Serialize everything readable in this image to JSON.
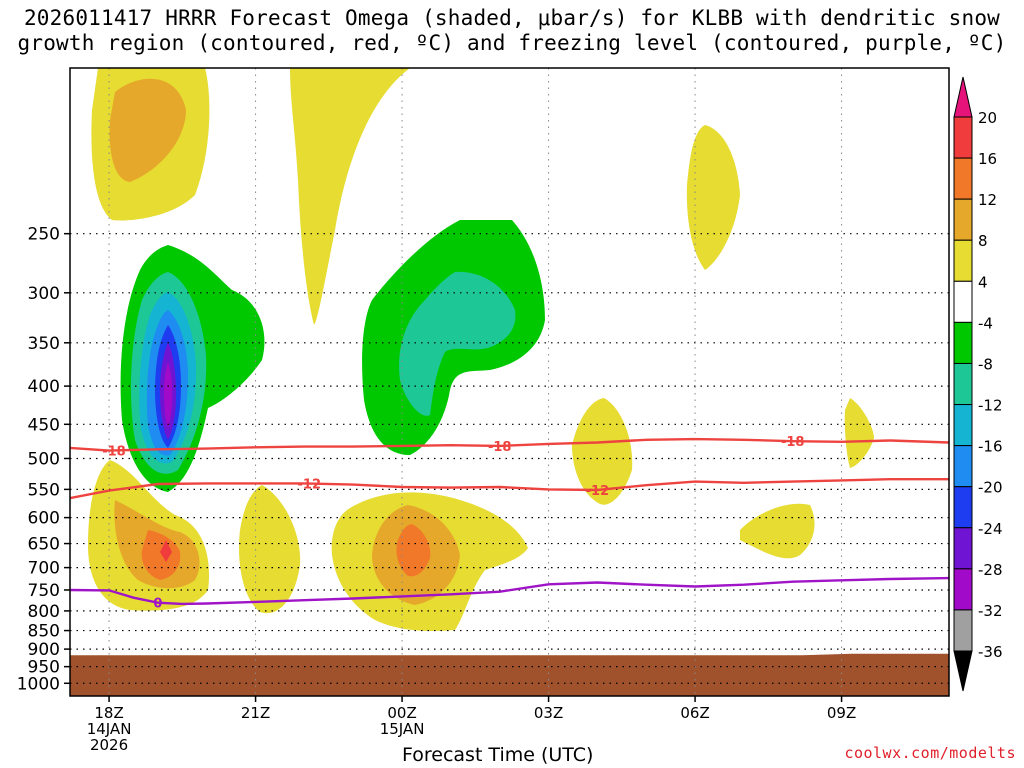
{
  "title_line1": "2026011417 HRRR Forecast Omega (shaded, μbar/s) for KLBB with dendritic snow",
  "title_line2": "growth region (contoured, red, ºC) and freezing level (contoured, purple, ºC)",
  "credit": "coolwx.com/modelts",
  "chart_data": {
    "type": "time-height contour",
    "xlabel": "Forecast Time (UTC)",
    "ylabel": "",
    "x_range_hours": [
      -0.8,
      17.2
    ],
    "y_range_mb": [
      150,
      1040
    ],
    "y_ticks": [
      250,
      300,
      350,
      400,
      450,
      500,
      550,
      600,
      650,
      700,
      750,
      800,
      850,
      900,
      950,
      1000
    ],
    "x_ticks": [
      {
        "hour": 0,
        "lines": [
          "18Z",
          "14JAN",
          "2026"
        ]
      },
      {
        "hour": 3,
        "lines": [
          "21Z"
        ]
      },
      {
        "hour": 6,
        "lines": [
          "00Z",
          "15JAN"
        ]
      },
      {
        "hour": 9,
        "lines": [
          "03Z"
        ]
      },
      {
        "hour": 12,
        "lines": [
          "06Z"
        ]
      },
      {
        "hour": 15,
        "lines": [
          "09Z"
        ]
      }
    ],
    "colorbar": {
      "labels": [
        "20",
        "16",
        "12",
        "8",
        "4",
        "-4",
        "-8",
        "-12",
        "-16",
        "-20",
        "-24",
        "-28",
        "-32",
        "-36"
      ],
      "colors": [
        "#f03c3c",
        "#f07828",
        "#e6a82a",
        "#e6dc32",
        "#ffffff",
        "#00c800",
        "#1ec896",
        "#14b4d2",
        "#1e8cf0",
        "#1e3cf0",
        "#6e14d2",
        "#a00ac8",
        "#a0a0a0"
      ],
      "top_arrow_color": "#e6147a",
      "bottom_arrow_color": "#000000"
    },
    "ground_color": "#a0522d",
    "ground_top_mb": [
      917,
      917,
      917,
      917,
      917,
      917,
      917,
      917,
      917,
      917,
      917,
      917,
      917,
      917,
      917,
      917,
      913,
      913,
      913
    ],
    "isotherms": [
      {
        "name": "-18",
        "color": "#ee4440",
        "hours": [
          -0.8,
          0,
          1,
          2,
          3,
          4,
          5,
          6,
          7,
          8,
          9,
          10,
          11,
          12,
          13,
          14,
          15,
          16,
          17.2
        ],
        "mb": [
          484,
          488,
          486,
          485,
          483,
          482,
          482,
          481,
          480,
          481,
          478,
          476,
          472,
          471,
          472,
          474,
          475,
          473,
          476
        ],
        "label_hours": [
          0.1,
          8.0,
          14.0
        ]
      },
      {
        "name": "-12",
        "color": "#ee4440",
        "hours": [
          -0.8,
          0,
          1,
          2,
          3,
          4,
          5,
          6,
          7,
          8,
          9,
          10,
          11,
          12,
          13,
          14,
          15,
          16,
          17.2
        ],
        "mb": [
          565,
          552,
          541,
          540,
          540,
          540,
          542,
          546,
          547,
          546,
          550,
          551,
          543,
          537,
          539,
          537,
          535,
          533,
          533
        ],
        "label_hours": [
          4.1,
          10.0
        ]
      },
      {
        "name": "0",
        "color": "#a014c8",
        "hours": [
          -0.8,
          0,
          0.5,
          1,
          1.5,
          2,
          3,
          4,
          5,
          6,
          7,
          8,
          9,
          10,
          11,
          12,
          13,
          14,
          15,
          16,
          17.2
        ],
        "mb": [
          750,
          751,
          768,
          780,
          783,
          782,
          778,
          774,
          770,
          765,
          760,
          754,
          737,
          733,
          738,
          742,
          738,
          731,
          728,
          725,
          723
        ],
        "label_hours": [
          1.0
        ]
      }
    ]
  }
}
